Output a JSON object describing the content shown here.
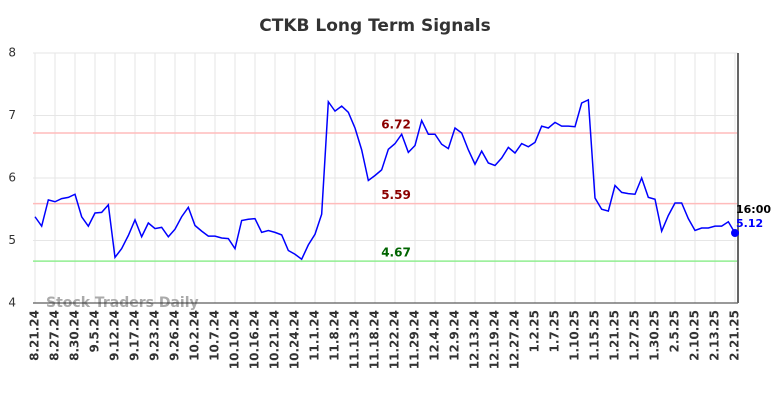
{
  "chart_data": {
    "type": "line",
    "title": "CTKB Long Term Signals",
    "categories": [
      "8.21.24",
      null,
      null,
      "8.27.24",
      null,
      null,
      "8.30.24",
      null,
      null,
      "9.5.24",
      null,
      null,
      "9.12.24",
      null,
      null,
      "9.17.24",
      null,
      null,
      "9.23.24",
      null,
      null,
      "9.26.24",
      null,
      null,
      "10.2.24",
      null,
      null,
      "10.7.24",
      null,
      null,
      "10.10.24",
      null,
      null,
      "10.16.24",
      null,
      null,
      "10.21.24",
      null,
      null,
      "10.24.24",
      null,
      null,
      "11.1.24",
      null,
      null,
      "11.8.24",
      null,
      null,
      "11.13.24",
      null,
      null,
      "11.18.24",
      null,
      null,
      "11.22.24",
      null,
      null,
      "11.29.24",
      null,
      null,
      "12.4.24",
      null,
      null,
      "12.9.24",
      null,
      null,
      "12.13.24",
      null,
      null,
      "12.19.24",
      null,
      null,
      "12.27.24",
      null,
      null,
      "1.2.25",
      null,
      null,
      "1.7.25",
      null,
      null,
      "1.10.25",
      null,
      null,
      "1.15.25",
      null,
      null,
      "1.21.25",
      null,
      null,
      "1.27.25",
      null,
      null,
      "1.30.25",
      null,
      null,
      "2.5.25",
      null,
      null,
      "2.10.25",
      null,
      null,
      "2.13.25",
      null,
      null,
      "2.21.25"
    ],
    "series": [
      {
        "name": "CTKB",
        "color": "#0000ff",
        "values": [
          5.38,
          5.23,
          5.65,
          5.62,
          5.67,
          5.69,
          5.74,
          5.38,
          5.23,
          5.44,
          5.45,
          5.57,
          4.73,
          4.87,
          5.08,
          5.33,
          5.06,
          5.28,
          5.19,
          5.21,
          5.06,
          5.18,
          5.38,
          5.53,
          5.24,
          5.15,
          5.07,
          5.07,
          5.04,
          5.03,
          4.87,
          5.32,
          5.34,
          5.35,
          5.13,
          5.16,
          5.13,
          5.09,
          4.84,
          4.78,
          4.7,
          4.93,
          5.1,
          5.42,
          7.22,
          7.07,
          7.15,
          7.05,
          6.8,
          6.45,
          5.96,
          6.04,
          6.13,
          6.46,
          6.55,
          6.7,
          6.41,
          6.52,
          6.92,
          6.7,
          6.7,
          6.54,
          6.47,
          6.8,
          6.72,
          6.45,
          6.22,
          6.43,
          6.24,
          6.2,
          6.32,
          6.49,
          6.4,
          6.55,
          6.5,
          6.57,
          6.83,
          6.8,
          6.89,
          6.83,
          6.83,
          6.82,
          7.2,
          7.25,
          5.68,
          5.5,
          5.47,
          5.88,
          5.77,
          5.75,
          5.74,
          6.0,
          5.69,
          5.66,
          5.15,
          5.4,
          5.6,
          5.6,
          5.35,
          5.16,
          5.2,
          5.2,
          5.23,
          5.23,
          5.3,
          5.12
        ]
      }
    ],
    "ylim": [
      4,
      8
    ],
    "yticks": [
      4,
      5,
      6,
      7,
      8
    ],
    "grid": true,
    "reference_lines": [
      {
        "value": 6.72,
        "color": "#ffbbbb",
        "label_color": "#8b0000"
      },
      {
        "value": 5.59,
        "color": "#ffbbbb",
        "label_color": "#8b0000"
      },
      {
        "value": 4.67,
        "color": "#90ee90",
        "label_color": "#006400"
      }
    ],
    "last_time": "16:00",
    "watermark": "Stock Traders Daily"
  }
}
